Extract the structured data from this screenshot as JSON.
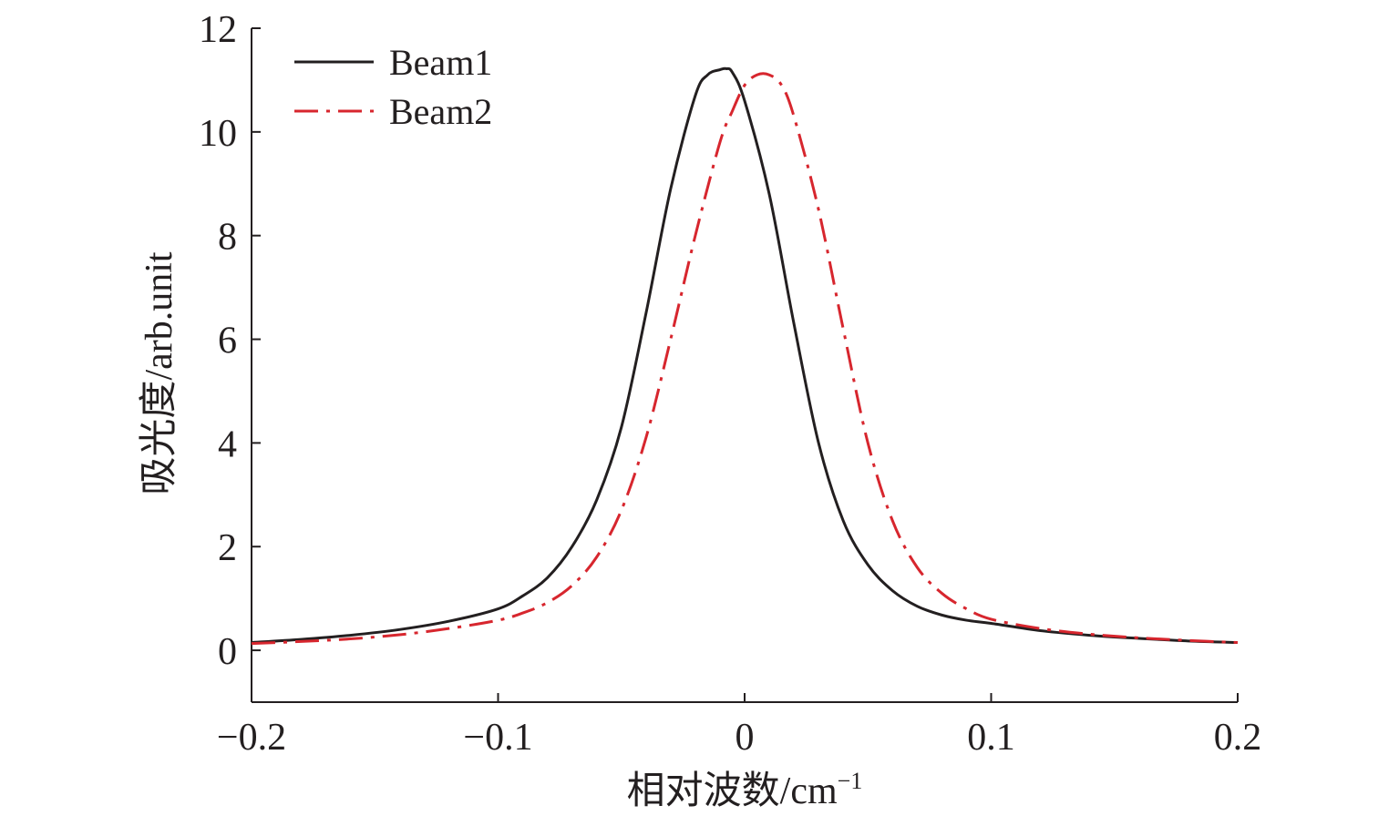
{
  "chart_data": {
    "type": "line",
    "title": "",
    "xlabel": "相对波数/cm",
    "xlabel_superscript": "−1",
    "ylabel": "吸光度/arb.unit",
    "xlim": [
      -0.2,
      0.2
    ],
    "ylim": [
      -1,
      12
    ],
    "xticks": [
      {
        "value": -0.2,
        "label": "−0.2"
      },
      {
        "value": -0.1,
        "label": "−0.1"
      },
      {
        "value": 0,
        "label": "0"
      },
      {
        "value": 0.1,
        "label": "0.1"
      },
      {
        "value": 0.2,
        "label": "0.2"
      }
    ],
    "yticks": [
      {
        "value": 0,
        "label": "0"
      },
      {
        "value": 2,
        "label": "2"
      },
      {
        "value": 4,
        "label": "4"
      },
      {
        "value": 6,
        "label": "6"
      },
      {
        "value": 8,
        "label": "8"
      },
      {
        "value": 10,
        "label": "10"
      },
      {
        "value": 12,
        "label": "12"
      }
    ],
    "grid": false,
    "legend_position": "top-left",
    "series": [
      {
        "name": "Beam1",
        "color": "#231f20",
        "dash": "solid",
        "x": [
          -0.2,
          -0.18,
          -0.16,
          -0.14,
          -0.12,
          -0.1,
          -0.09,
          -0.08,
          -0.07,
          -0.06,
          -0.05,
          -0.04,
          -0.03,
          -0.02,
          -0.015,
          -0.01,
          -0.0075,
          -0.005,
          0,
          0.01,
          0.02,
          0.03,
          0.04,
          0.05,
          0.06,
          0.07,
          0.08,
          0.09,
          0.1,
          0.12,
          0.14,
          0.16,
          0.18,
          0.2
        ],
        "y": [
          0.15,
          0.21,
          0.29,
          0.4,
          0.56,
          0.8,
          1.05,
          1.4,
          2.0,
          2.9,
          4.3,
          6.5,
          8.9,
          10.7,
          11.1,
          11.2,
          11.22,
          11.15,
          10.6,
          8.8,
          6.3,
          4.0,
          2.5,
          1.65,
          1.15,
          0.85,
          0.68,
          0.58,
          0.52,
          0.38,
          0.29,
          0.23,
          0.18,
          0.15
        ]
      },
      {
        "name": "Beam2",
        "color": "#d7262e",
        "dash": "dash-dot",
        "x": [
          -0.2,
          -0.18,
          -0.16,
          -0.14,
          -0.12,
          -0.1,
          -0.09,
          -0.08,
          -0.07,
          -0.06,
          -0.05,
          -0.04,
          -0.03,
          -0.02,
          -0.01,
          -0.005,
          0,
          0.005,
          0.01,
          0.015,
          0.02,
          0.03,
          0.04,
          0.05,
          0.06,
          0.07,
          0.08,
          0.09,
          0.1,
          0.12,
          0.14,
          0.16,
          0.18,
          0.2
        ],
        "y": [
          0.13,
          0.17,
          0.22,
          0.3,
          0.42,
          0.58,
          0.72,
          0.92,
          1.25,
          1.8,
          2.7,
          4.1,
          6.0,
          8.0,
          9.8,
          10.4,
          10.9,
          11.1,
          11.1,
          10.9,
          10.3,
          8.5,
          6.2,
          4.0,
          2.5,
          1.6,
          1.1,
          0.8,
          0.6,
          0.42,
          0.31,
          0.24,
          0.19,
          0.15
        ]
      }
    ]
  }
}
